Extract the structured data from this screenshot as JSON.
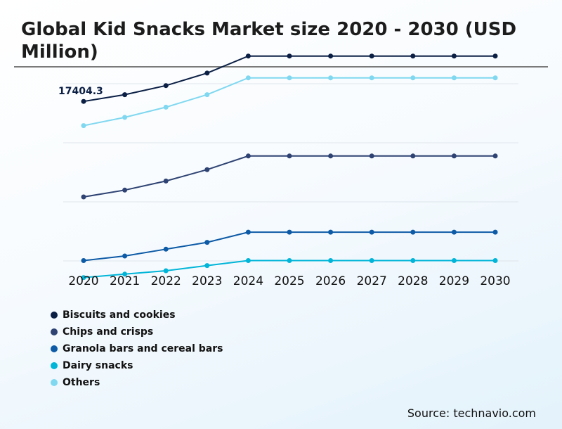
{
  "title": "Global Kid Snacks Market size 2020 - 2030 (USD Million)",
  "source": "Source: technavio.com",
  "colors": {
    "Biscuits and cookies": "#0b1f45",
    "Chips and crisps": "#2e4373",
    "Granola bars and cereal bars": "#0d5aa6",
    "Dairy snacks": "#00b5d8",
    "Others": "#7fd8f0"
  },
  "chart_data": {
    "type": "line",
    "title": "Global Kid Snacks Market size 2020 - 2030 (USD Million)",
    "xlabel": "",
    "ylabel": "",
    "x": [
      "2020",
      "2021",
      "2022",
      "2023",
      "2024",
      "2025",
      "2026",
      "2027",
      "2028",
      "2029",
      "2030"
    ],
    "grid": true,
    "y_axis_labels_shown": false,
    "legend_position": "bottom-left",
    "annotation": {
      "series": "Biscuits and cookies",
      "x": "2020",
      "label": "17404.3"
    },
    "series": [
      {
        "name": "Biscuits and cookies",
        "values": [
          17404.3,
          17700,
          18100,
          18650,
          19400,
          19400,
          19400,
          19400,
          19400,
          19400,
          19400
        ]
      },
      {
        "name": "Chips and crisps",
        "values": [
          13200,
          13500,
          13900,
          14400,
          15000,
          15000,
          15000,
          15000,
          15000,
          15000,
          15000
        ]
      },
      {
        "name": "Granola bars and cereal bars",
        "values": [
          10400,
          10600,
          10900,
          11200,
          11650,
          11650,
          11650,
          11650,
          11650,
          11650,
          11650
        ]
      },
      {
        "name": "Dairy snacks",
        "values": [
          9650,
          9800,
          9950,
          10180,
          10400,
          10400,
          10400,
          10400,
          10400,
          10400,
          10400
        ]
      },
      {
        "name": "Others",
        "values": [
          16340,
          16700,
          17150,
          17700,
          18440,
          18440,
          18440,
          18440,
          18440,
          18440,
          18440
        ]
      }
    ],
    "ylim": [
      9300,
      19700
    ]
  }
}
